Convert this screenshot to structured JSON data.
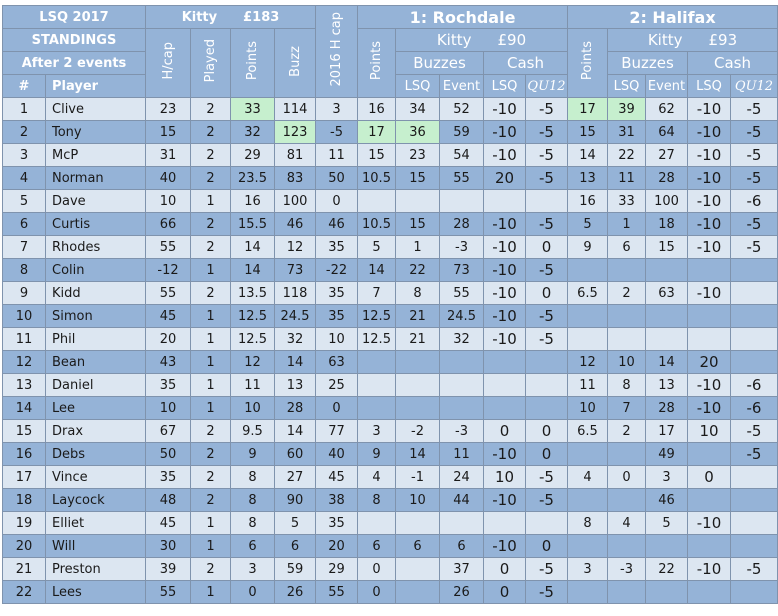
{
  "header": {
    "season": "LSQ 2017",
    "standings": "STANDINGS",
    "after": "After 2 events",
    "num": "#",
    "player": "Player",
    "kitty": "Kitty",
    "kitty_amount": "£183",
    "hcap": "H/cap",
    "played": "Played",
    "points": "Points",
    "buzz": "Buzz",
    "hcap_2016": "2016 H cap",
    "events": [
      {
        "title": "1: Rochdale",
        "points": "Points",
        "kitty": "Kitty",
        "kitty_amount": "£90",
        "buzzes": "Buzzes",
        "cash": "Cash",
        "lsq": "LSQ",
        "event": "Event",
        "cash_lsq": "LSQ",
        "qu12": "QU12"
      },
      {
        "title": "2: Halifax",
        "points": "Points",
        "kitty": "Kitty",
        "kitty_amount": "£93",
        "buzzes": "Buzzes",
        "cash": "Cash",
        "lsq": "LSQ",
        "event": "Event",
        "cash_lsq": "LSQ",
        "qu12": "QU12"
      }
    ]
  },
  "rows": [
    [
      1,
      "Clive",
      23,
      2,
      33,
      114,
      3,
      16,
      34,
      52,
      -10,
      -5,
      17,
      39,
      62,
      -10,
      -5
    ],
    [
      2,
      "Tony",
      15,
      2,
      32,
      123,
      -5,
      17,
      36,
      59,
      -10,
      -5,
      15,
      31,
      64,
      -10,
      -5
    ],
    [
      3,
      "McP",
      31,
      2,
      29,
      81,
      11,
      15,
      23,
      54,
      -10,
      -5,
      14,
      22,
      27,
      -10,
      -5
    ],
    [
      4,
      "Norman",
      40,
      2,
      23.5,
      83,
      50,
      10.5,
      15,
      55,
      20,
      -5,
      13,
      11,
      28,
      -10,
      -5
    ],
    [
      5,
      "Dave",
      10,
      1,
      16,
      100,
      0,
      null,
      null,
      null,
      null,
      null,
      16,
      33,
      100,
      -10,
      -6
    ],
    [
      6,
      "Curtis",
      66,
      2,
      15.5,
      46,
      46,
      10.5,
      15,
      28,
      -10,
      -5,
      5,
      1,
      18,
      -10,
      -5
    ],
    [
      7,
      "Rhodes",
      55,
      2,
      14,
      12,
      35,
      5,
      1,
      -3,
      -10,
      0,
      9,
      6,
      15,
      -10,
      -5
    ],
    [
      8,
      "Colin",
      -12,
      1,
      14,
      73,
      -22,
      14,
      22,
      73,
      -10,
      -5,
      null,
      null,
      null,
      null,
      null
    ],
    [
      9,
      "Kidd",
      55,
      2,
      13.5,
      118,
      35,
      7,
      8,
      55,
      -10,
      0,
      6.5,
      2,
      63,
      -10,
      null
    ],
    [
      10,
      "Simon",
      45,
      1,
      12.5,
      24.5,
      35,
      12.5,
      21,
      24.5,
      -10,
      -5,
      null,
      null,
      null,
      null,
      null
    ],
    [
      11,
      "Phil",
      20,
      1,
      12.5,
      32,
      10,
      12.5,
      21,
      32,
      -10,
      -5,
      null,
      null,
      null,
      null,
      null
    ],
    [
      12,
      "Bean",
      43,
      1,
      12,
      14,
      63,
      null,
      null,
      null,
      null,
      null,
      12,
      10,
      14,
      20,
      null
    ],
    [
      13,
      "Daniel",
      35,
      1,
      11,
      13,
      25,
      null,
      null,
      null,
      null,
      null,
      11,
      8,
      13,
      -10,
      -6
    ],
    [
      14,
      "Lee",
      10,
      1,
      10,
      28,
      0,
      null,
      null,
      null,
      null,
      null,
      10,
      7,
      28,
      -10,
      -6
    ],
    [
      15,
      "Drax",
      67,
      2,
      9.5,
      14,
      77,
      3,
      -2,
      -3,
      0,
      0,
      6.5,
      2,
      17,
      10,
      -5
    ],
    [
      16,
      "Debs",
      50,
      2,
      9,
      60,
      40,
      9,
      14,
      11,
      -10,
      0,
      null,
      null,
      49,
      null,
      -5
    ],
    [
      17,
      "Vince",
      35,
      2,
      8,
      27,
      45,
      4,
      -1,
      24,
      10,
      -5,
      4,
      0,
      3,
      0,
      null
    ],
    [
      18,
      "Laycock",
      48,
      2,
      8,
      90,
      38,
      8,
      10,
      44,
      -10,
      -5,
      null,
      null,
      46,
      null,
      null
    ],
    [
      19,
      "Elliet",
      45,
      1,
      8,
      5,
      35,
      null,
      null,
      null,
      null,
      null,
      8,
      4,
      5,
      -10,
      null
    ],
    [
      20,
      "Will",
      30,
      1,
      6,
      6,
      20,
      6,
      6,
      6,
      -10,
      0,
      null,
      null,
      null,
      null,
      null
    ],
    [
      21,
      "Preston",
      39,
      2,
      3,
      59,
      29,
      0,
      null,
      37,
      0,
      -5,
      3,
      -3,
      22,
      -10,
      -5
    ],
    [
      22,
      "Lees",
      55,
      1,
      0,
      26,
      55,
      0,
      null,
      26,
      0,
      -5,
      null,
      null,
      null,
      null,
      null
    ]
  ],
  "highlight_color": "#c6efce",
  "highlighted": [
    [
      0,
      4
    ],
    [
      0,
      12
    ],
    [
      0,
      13
    ],
    [
      1,
      5
    ],
    [
      1,
      7
    ],
    [
      1,
      8
    ]
  ]
}
